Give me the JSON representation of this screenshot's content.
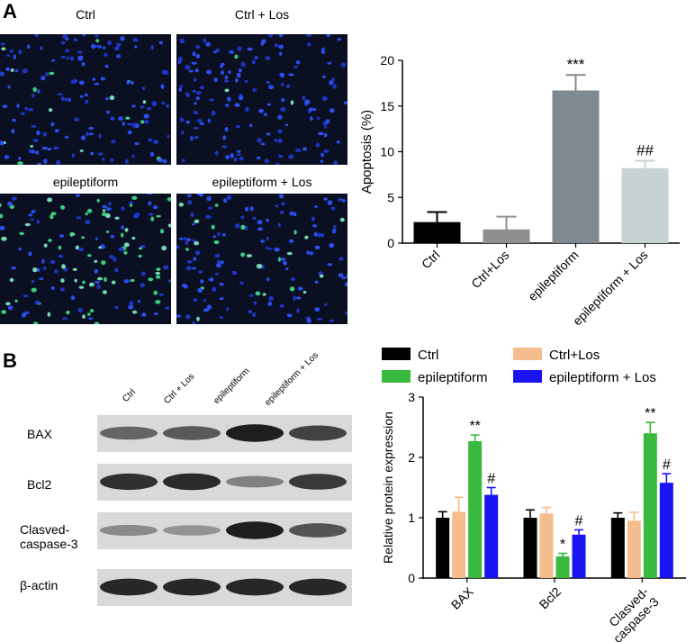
{
  "panel_a": {
    "letter": "A",
    "images": [
      {
        "label": "Ctrl",
        "green_level": 0.05
      },
      {
        "label": "Ctrl + Los",
        "green_level": 0.03
      },
      {
        "label": "epileptiform",
        "green_level": 0.5
      },
      {
        "label": "epileptiform + Los",
        "green_level": 0.15
      }
    ]
  },
  "panel_b": {
    "letter": "B",
    "lanes": [
      "Ctrl",
      "Ctrl + Los",
      "epileptiform",
      "epileptiform + Los"
    ],
    "blots": [
      {
        "label": "BAX",
        "intensity": [
          0.55,
          0.62,
          0.95,
          0.75
        ]
      },
      {
        "label": "Bcl2",
        "intensity": [
          0.85,
          0.88,
          0.4,
          0.8
        ]
      },
      {
        "label_line1": "Clasved-",
        "label_line2": "caspase-3",
        "intensity": [
          0.35,
          0.3,
          0.95,
          0.65
        ]
      },
      {
        "label": "β-actin",
        "intensity": [
          0.9,
          0.9,
          0.9,
          0.9
        ]
      }
    ]
  },
  "chart_data": [
    {
      "type": "bar",
      "categories": [
        "Ctrl",
        "Ctrl+Los",
        "epileptiform",
        "epileptiform + Los"
      ],
      "values": [
        2.3,
        1.5,
        16.7,
        8.2
      ],
      "errors": [
        1.1,
        1.4,
        1.7,
        0.8
      ],
      "annotations": [
        "",
        "",
        "***",
        "##"
      ],
      "colors": [
        "#000000",
        "#8f8f8f",
        "#7e8a90",
        "#c6d2d3"
      ],
      "ylabel": "Apoptosis (%)",
      "ylim": [
        0,
        20
      ],
      "yticks": [
        "0",
        "5",
        "10",
        "15",
        "20"
      ]
    },
    {
      "type": "bar",
      "categories": [
        "BAX",
        "Bcl2",
        "Clasved-caspase-3"
      ],
      "category_lines": [
        [
          "BAX"
        ],
        [
          "Bcl2"
        ],
        [
          "Clasved-",
          "caspase-3"
        ]
      ],
      "series": [
        {
          "name": "Ctrl",
          "color": "#000000",
          "values": [
            1.0,
            1.0,
            1.0
          ],
          "errors": [
            0.1,
            0.13,
            0.08
          ],
          "annotations": [
            "",
            "",
            ""
          ]
        },
        {
          "name": "Ctrl+Los",
          "color": "#f5bd8d",
          "values": [
            1.1,
            1.07,
            0.95
          ],
          "errors": [
            0.24,
            0.1,
            0.14
          ],
          "annotations": [
            "",
            "",
            ""
          ]
        },
        {
          "name": "epileptiform",
          "color": "#39b93d",
          "values": [
            2.27,
            0.36,
            2.4
          ],
          "errors": [
            0.1,
            0.05,
            0.18
          ],
          "annotations": [
            "**",
            "*",
            "**"
          ]
        },
        {
          "name": "epileptiform + Los",
          "color": "#1a14f2",
          "values": [
            1.38,
            0.72,
            1.58
          ],
          "errors": [
            0.12,
            0.08,
            0.15
          ],
          "annotations": [
            "#",
            "#",
            "#"
          ]
        }
      ],
      "ylabel": "Relative protein expression",
      "ylim": [
        0,
        3
      ],
      "yticks": [
        "0",
        "1",
        "2",
        "3"
      ],
      "legend": "top"
    }
  ]
}
